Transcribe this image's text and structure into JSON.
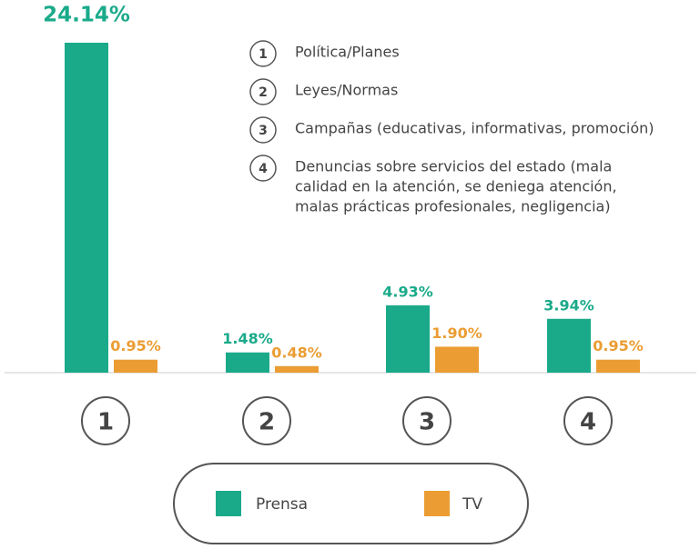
{
  "chart_data": {
    "type": "bar",
    "categories": [
      "1",
      "2",
      "3",
      "4"
    ],
    "series": [
      {
        "name": "Prensa",
        "color": "#1aaa8a",
        "values": [
          24.14,
          1.48,
          4.93,
          3.94
        ],
        "value_labels": [
          "24.14%",
          "1.48%",
          "4.93%",
          "3.94%"
        ]
      },
      {
        "name": "TV",
        "color": "#eb9d33",
        "values": [
          0.95,
          0.48,
          1.9,
          0.95
        ],
        "value_labels": [
          "0.95%",
          "0.48%",
          "1.90%",
          "0.95%"
        ]
      }
    ],
    "annotations": [
      {
        "lines": [
          "Política/Planes"
        ]
      },
      {
        "lines": [
          "Leyes/Normas"
        ]
      },
      {
        "lines": [
          "Campañas (educativas, informativas, promoción)"
        ]
      },
      {
        "lines": [
          "Denuncias sobre servicios del estado (mala",
          "calidad en la atención, se deniega atención,",
          "malas prácticas profesionales, negligencia)"
        ]
      }
    ]
  }
}
